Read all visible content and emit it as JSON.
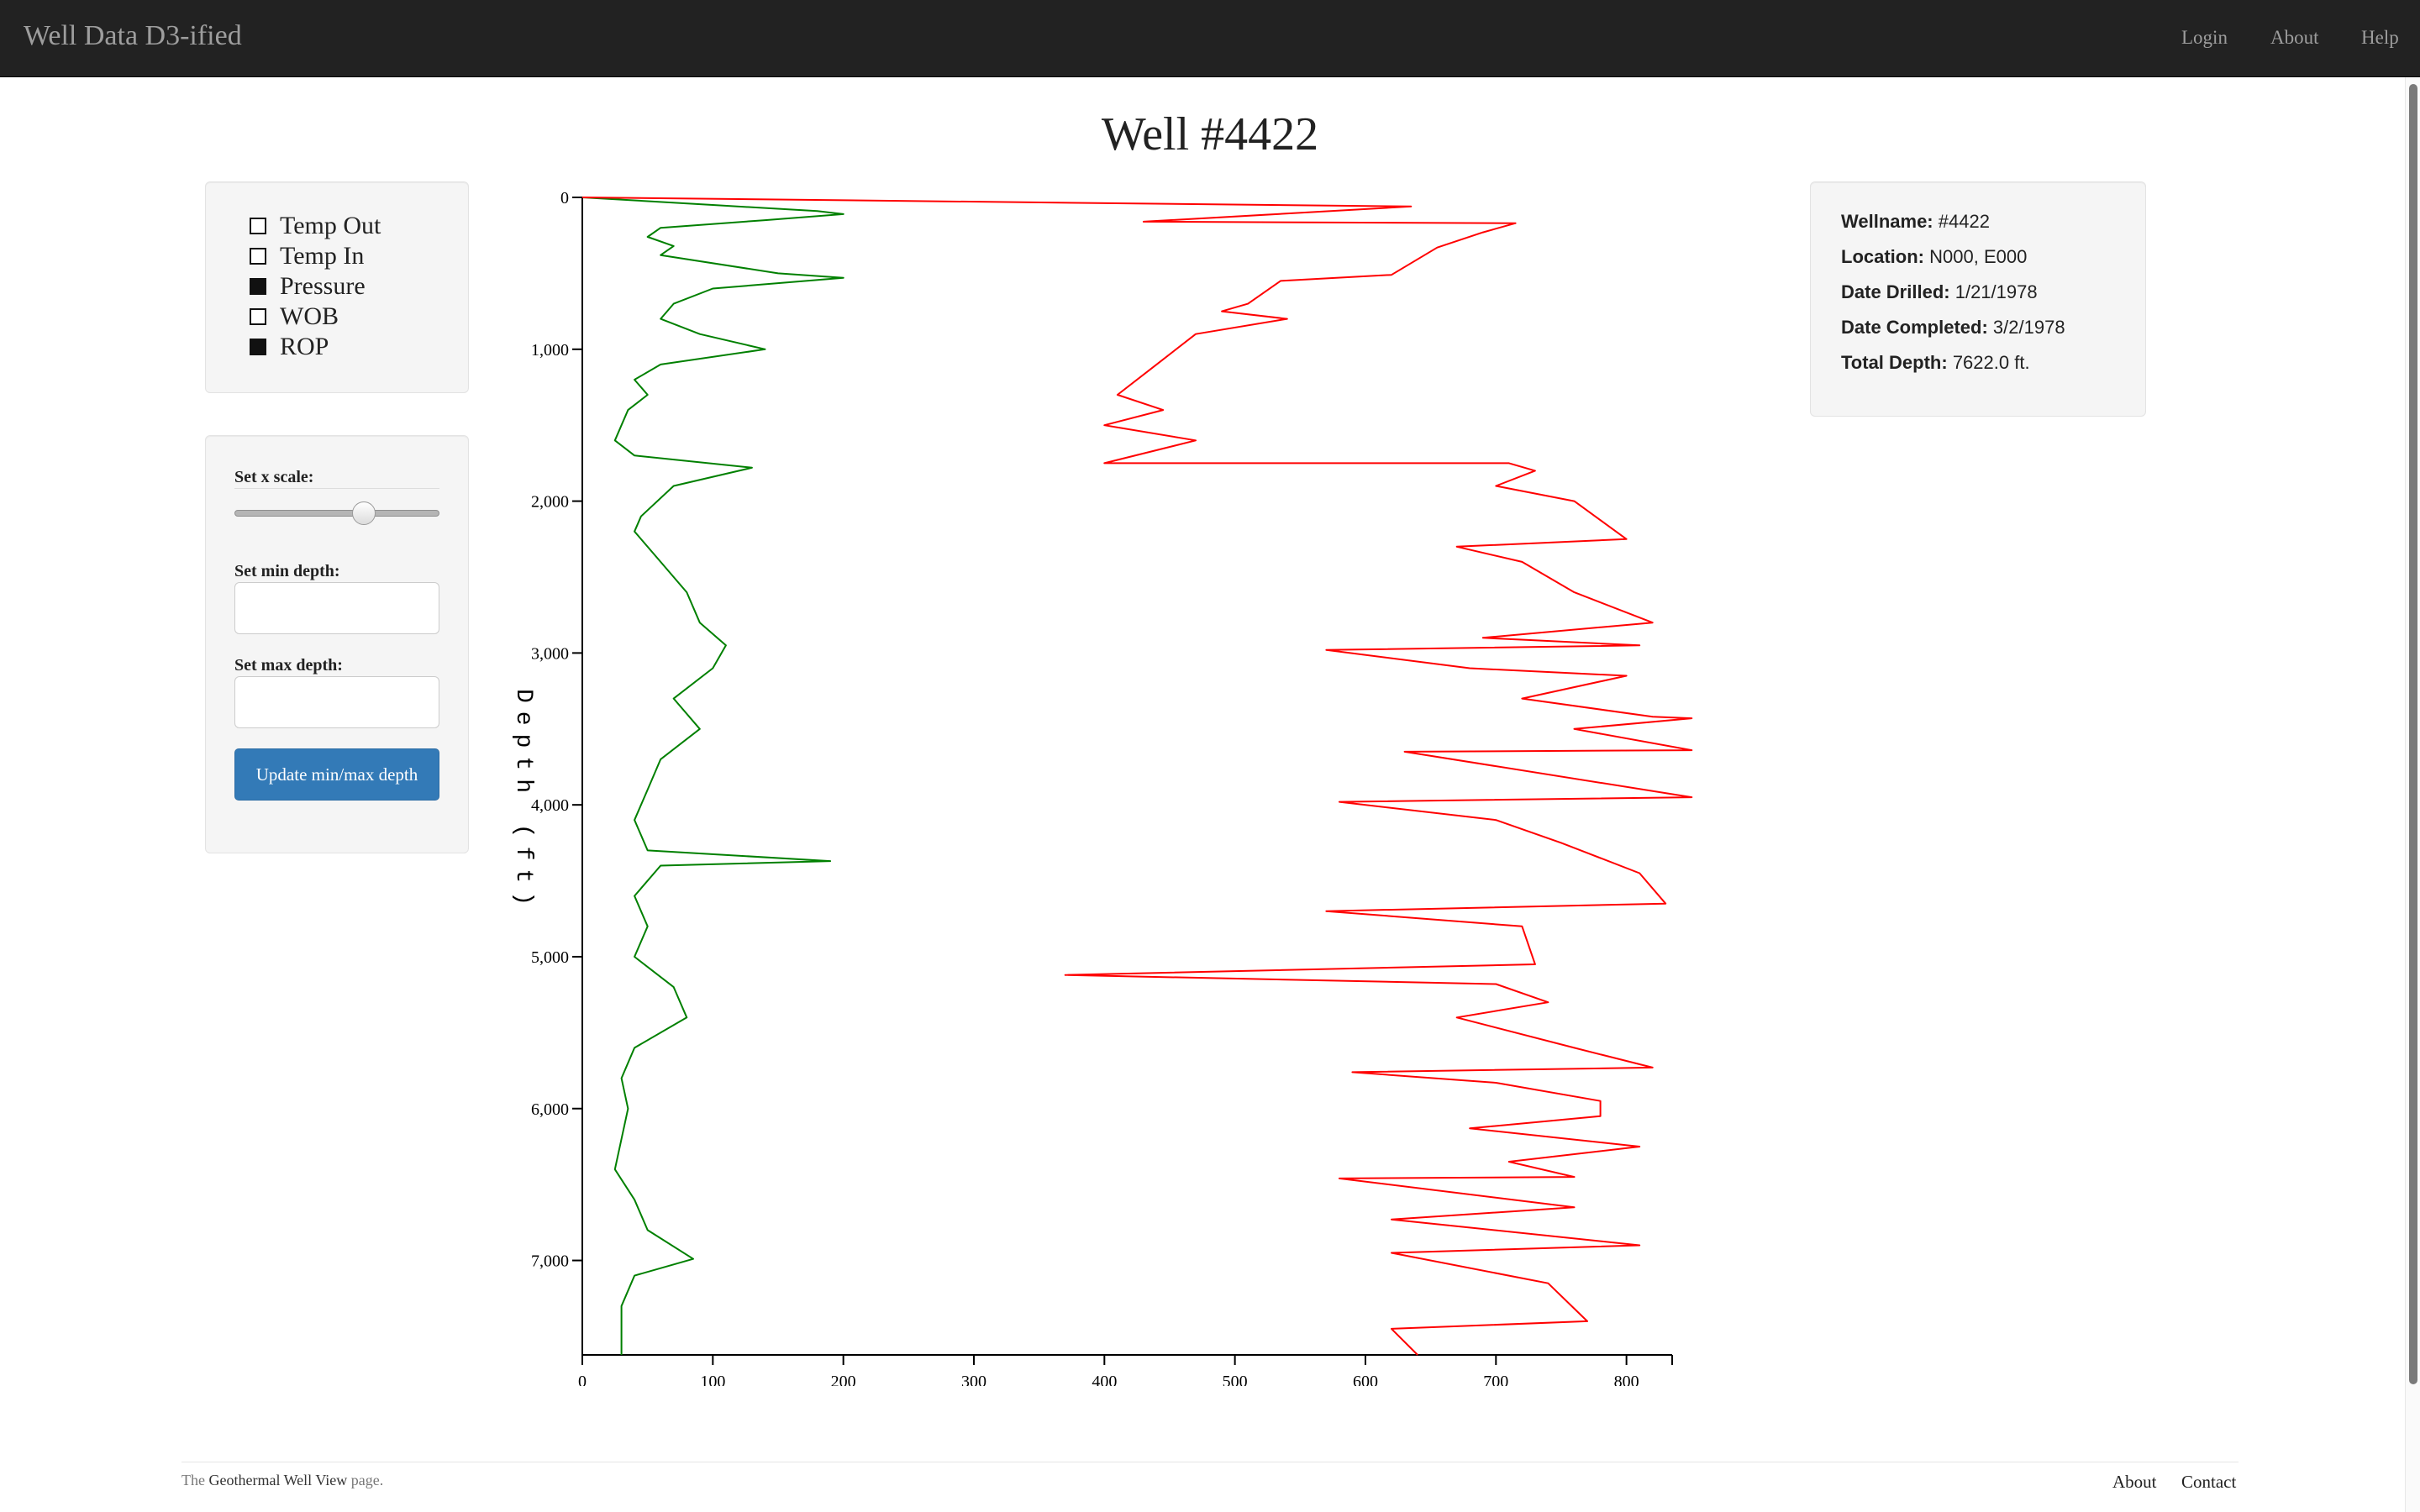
{
  "navbar": {
    "brand": "Well Data D3-ified",
    "links": [
      "Login",
      "About",
      "Help"
    ]
  },
  "page": {
    "title": "Well #4422"
  },
  "curves_panel": {
    "items": [
      {
        "label": "Temp Out",
        "checked": false
      },
      {
        "label": "Temp In",
        "checked": false
      },
      {
        "label": "Pressure",
        "checked": true
      },
      {
        "label": "WOB",
        "checked": false
      },
      {
        "label": "ROP",
        "checked": true
      }
    ]
  },
  "controls": {
    "x_scale_label": "Set x scale:",
    "x_scale_value": 0.63,
    "min_depth_label": "Set min depth:",
    "min_depth_value": "",
    "max_depth_label": "Set max depth:",
    "max_depth_value": "",
    "update_button": "Update min/max depth"
  },
  "well_info": {
    "wellname_label": "Wellname:",
    "wellname": "#4422",
    "location_label": "Location:",
    "location": "N000, E000",
    "drilled_label": "Date Drilled:",
    "drilled": "1/21/1978",
    "completed_label": "Date Completed:",
    "completed": "3/2/1978",
    "depth_label": "Total Depth:",
    "depth": "7622.0 ft."
  },
  "chart_data": {
    "type": "line",
    "ylabel": "Depth (ft)",
    "xlim": [
      0,
      835
    ],
    "ylim": [
      0,
      7622
    ],
    "x_ticks": [
      0,
      100,
      200,
      300,
      400,
      500,
      600,
      700,
      800
    ],
    "y_ticks": [
      0,
      1000,
      2000,
      3000,
      4000,
      5000,
      6000,
      7000
    ],
    "x_tick_labels": [
      "0",
      "100",
      "200",
      "300",
      "400",
      "500",
      "600",
      "700",
      "800"
    ],
    "y_tick_labels": [
      "0",
      "1,000",
      "2,000",
      "3,000",
      "4,000",
      "5,000",
      "6,000",
      "7,000"
    ],
    "series": [
      {
        "color": "#008000",
        "points": [
          [
            0,
            0
          ],
          [
            100,
            50
          ],
          [
            180,
            90
          ],
          [
            200,
            110
          ],
          [
            140,
            150
          ],
          [
            60,
            200
          ],
          [
            50,
            260
          ],
          [
            70,
            320
          ],
          [
            60,
            380
          ],
          [
            150,
            500
          ],
          [
            200,
            530
          ],
          [
            100,
            600
          ],
          [
            70,
            700
          ],
          [
            60,
            800
          ],
          [
            90,
            900
          ],
          [
            140,
            1000
          ],
          [
            60,
            1100
          ],
          [
            40,
            1200
          ],
          [
            50,
            1300
          ],
          [
            35,
            1400
          ],
          [
            30,
            1500
          ],
          [
            25,
            1600
          ],
          [
            40,
            1700
          ],
          [
            130,
            1780
          ],
          [
            70,
            1900
          ],
          [
            45,
            2100
          ],
          [
            40,
            2200
          ],
          [
            60,
            2400
          ],
          [
            80,
            2600
          ],
          [
            90,
            2800
          ],
          [
            110,
            2950
          ],
          [
            100,
            3100
          ],
          [
            70,
            3300
          ],
          [
            90,
            3500
          ],
          [
            60,
            3700
          ],
          [
            50,
            3900
          ],
          [
            40,
            4100
          ],
          [
            50,
            4300
          ],
          [
            190,
            4370
          ],
          [
            60,
            4400
          ],
          [
            40,
            4600
          ],
          [
            50,
            4800
          ],
          [
            40,
            5000
          ],
          [
            70,
            5200
          ],
          [
            80,
            5400
          ],
          [
            40,
            5600
          ],
          [
            30,
            5800
          ],
          [
            35,
            6000
          ],
          [
            30,
            6200
          ],
          [
            25,
            6400
          ],
          [
            40,
            6600
          ],
          [
            50,
            6800
          ],
          [
            85,
            6990
          ],
          [
            40,
            7100
          ],
          [
            30,
            7300
          ],
          [
            30,
            7622
          ]
        ]
      },
      {
        "color": "#ff0000",
        "points": [
          [
            0,
            0
          ],
          [
            635,
            60
          ],
          [
            430,
            160
          ],
          [
            715,
            170
          ],
          [
            690,
            230
          ],
          [
            655,
            330
          ],
          [
            620,
            510
          ],
          [
            535,
            550
          ],
          [
            510,
            700
          ],
          [
            490,
            750
          ],
          [
            540,
            800
          ],
          [
            470,
            900
          ],
          [
            440,
            1100
          ],
          [
            410,
            1300
          ],
          [
            445,
            1400
          ],
          [
            400,
            1500
          ],
          [
            470,
            1600
          ],
          [
            400,
            1750
          ],
          [
            710,
            1750
          ],
          [
            730,
            1800
          ],
          [
            700,
            1900
          ],
          [
            760,
            2000
          ],
          [
            800,
            2250
          ],
          [
            670,
            2300
          ],
          [
            720,
            2400
          ],
          [
            760,
            2600
          ],
          [
            820,
            2800
          ],
          [
            690,
            2900
          ],
          [
            810,
            2950
          ],
          [
            570,
            2980
          ],
          [
            680,
            3100
          ],
          [
            800,
            3150
          ],
          [
            720,
            3300
          ],
          [
            820,
            3420
          ],
          [
            850,
            3430
          ],
          [
            760,
            3500
          ],
          [
            850,
            3640
          ],
          [
            630,
            3650
          ],
          [
            850,
            3950
          ],
          [
            580,
            3980
          ],
          [
            700,
            4100
          ],
          [
            750,
            4250
          ],
          [
            810,
            4450
          ],
          [
            830,
            4650
          ],
          [
            570,
            4700
          ],
          [
            720,
            4800
          ],
          [
            730,
            5050
          ],
          [
            370,
            5120
          ],
          [
            700,
            5180
          ],
          [
            740,
            5300
          ],
          [
            670,
            5400
          ],
          [
            760,
            5600
          ],
          [
            820,
            5730
          ],
          [
            590,
            5760
          ],
          [
            700,
            5830
          ],
          [
            780,
            5950
          ],
          [
            780,
            6050
          ],
          [
            680,
            6130
          ],
          [
            810,
            6250
          ],
          [
            710,
            6350
          ],
          [
            760,
            6450
          ],
          [
            580,
            6460
          ],
          [
            760,
            6650
          ],
          [
            620,
            6730
          ],
          [
            810,
            6900
          ],
          [
            620,
            6950
          ],
          [
            740,
            7150
          ],
          [
            770,
            7400
          ],
          [
            620,
            7450
          ],
          [
            640,
            7622
          ]
        ]
      }
    ]
  },
  "footer": {
    "prefix": "The",
    "link": "Geothermal Well View",
    "suffix": "page.",
    "links": [
      "About",
      "Contact"
    ]
  }
}
